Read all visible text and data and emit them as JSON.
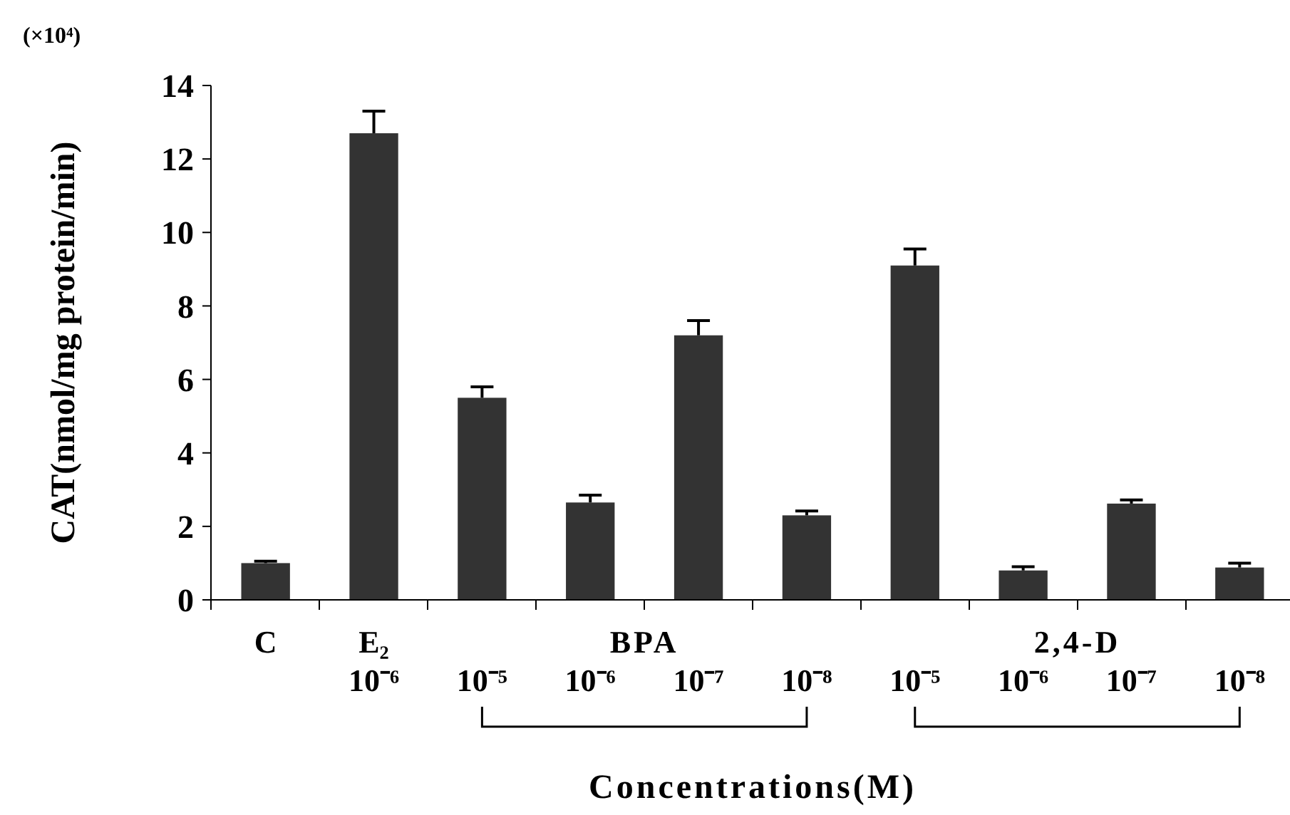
{
  "chart_data": {
    "type": "bar",
    "xlabel": "Concentrations(M)",
    "ylabel": "CAT(nmol/mg protein/min)",
    "categories": [
      "C",
      "E₂ 10⁻⁶",
      "10⁻⁵",
      "10⁻⁶",
      "10⁻⁷",
      "10⁻⁸",
      "10⁻⁵",
      "10⁻⁶",
      "10⁻⁷",
      "10⁻⁸"
    ],
    "values": [
      1.0,
      12.7,
      5.5,
      2.65,
      7.2,
      2.3,
      9.1,
      0.8,
      2.62,
      0.88
    ],
    "errors": [
      0.05,
      0.6,
      0.3,
      0.2,
      0.4,
      0.12,
      0.45,
      0.1,
      0.1,
      0.12
    ],
    "color": "#333333",
    "ylim": [
      0,
      14
    ],
    "yticks": [
      0,
      2,
      4,
      6,
      8,
      10,
      12,
      14
    ],
    "grid": false,
    "annotations": [
      "(×10⁴)",
      "BPA",
      "2,4-D"
    ]
  }
}
